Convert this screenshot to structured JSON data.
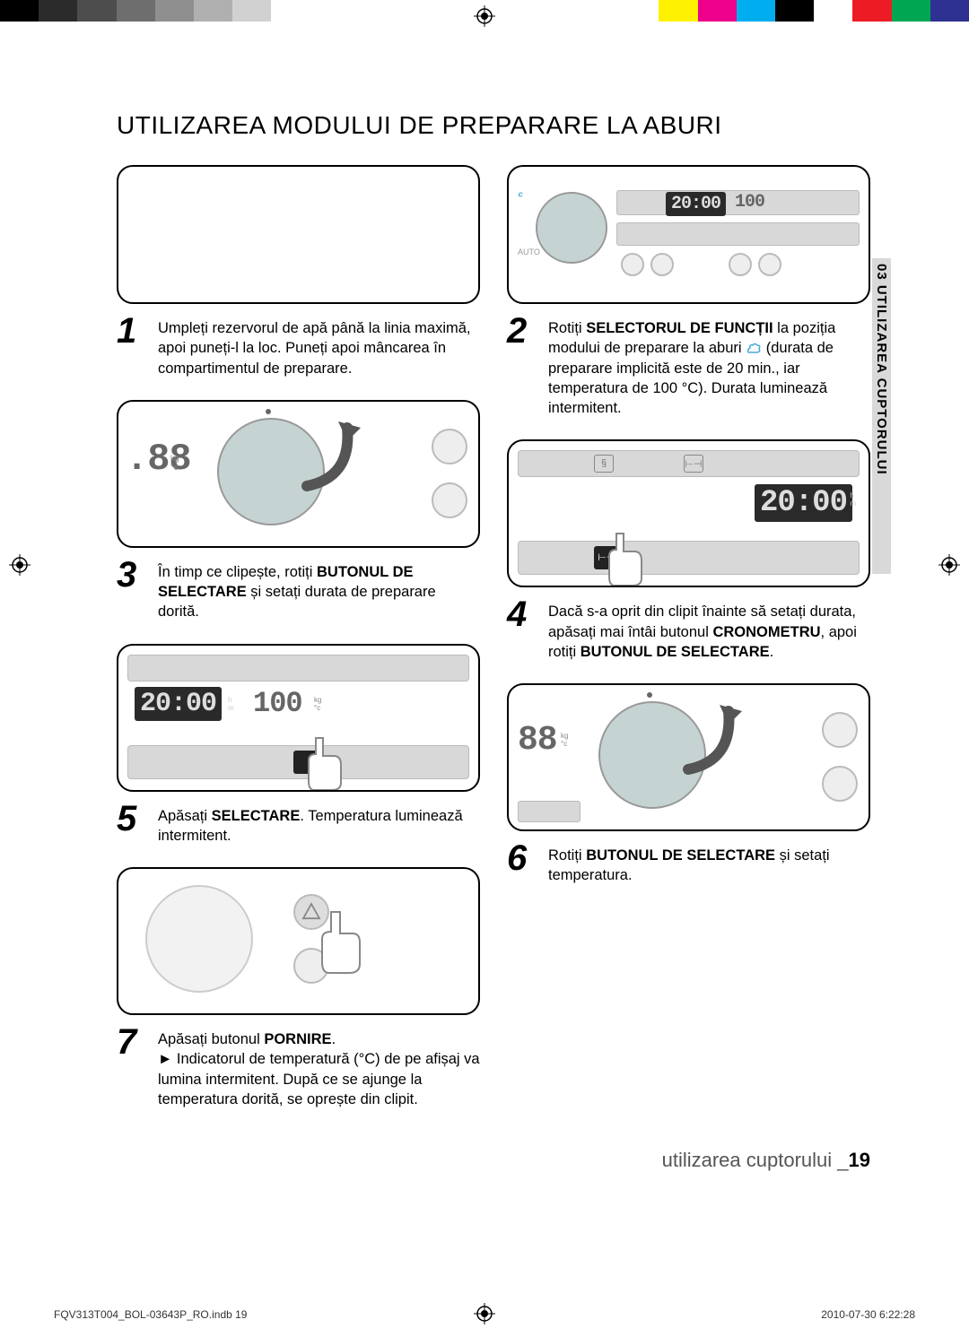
{
  "colorbar": [
    "#000000",
    "#2b2b2b",
    "#4d4d4d",
    "#6e6e6e",
    "#8f8f8f",
    "#b0b0b0",
    "#d1d1d1",
    "#ffffff",
    "#ffffff",
    "#ffffff",
    "#ffffff",
    "#ffffff",
    "#ffffff",
    "#ffffff",
    "#ffffff",
    "#ffffff",
    "#ffffff",
    "#fff200",
    "#ec008c",
    "#00aeef",
    "#000000",
    "#ffffff",
    "#ed1c24",
    "#00a651",
    "#2e3192"
  ],
  "title": "UTILIZAREA MODULUI DE PREPARARE LA ABURI",
  "side_tab": "03 UTILIZAREA CUPTORULUI",
  "steps": {
    "s1": {
      "num": "1",
      "text": "Umpleți rezervorul de apă până la linia maximă, apoi puneți-l la loc. Puneți apoi mâncarea în compartimentul de preparare."
    },
    "s2": {
      "num": "2",
      "pre": "Rotiți ",
      "bold1": "SELECTORUL DE FUNCȚII",
      "mid1": " la poziția modului de preparare la aburi ",
      "mid2": " (durata de preparare implicită este de 20 min., iar temperatura de 100 °C). Durata luminează intermitent."
    },
    "s3": {
      "num": "3",
      "pre": "În timp ce clipește, rotiți ",
      "bold1": "BUTONUL DE SELECTARE",
      "mid1": " și setați durata de preparare dorită."
    },
    "s4": {
      "num": "4",
      "pre": "Dacă s-a oprit din clipit înainte să setați durata, apăsați mai întâi butonul ",
      "bold1": "CRONOMETRU",
      "mid1": ", apoi rotiți ",
      "bold2": "BUTONUL DE SELECTARE",
      "post": "."
    },
    "s5": {
      "num": "5",
      "pre": "Apăsați ",
      "bold1": "SELECTARE",
      "mid1": ". Temperatura luminează intermitent."
    },
    "s6": {
      "num": "6",
      "pre": "Rotiți ",
      "bold1": "BUTONUL DE SELECTARE",
      "mid1": " și setați temperatura."
    },
    "s7": {
      "num": "7",
      "pre": "Apăsați butonul ",
      "bold1": "PORNIRE",
      "mid1": ".",
      "bullet": "► Indicatorul de temperatură (°C) de pe afișaj va lumina intermitent. După ce se ajunge la temperatura dorită, se oprește din clipit."
    }
  },
  "panel": {
    "time": "20:00",
    "temp": "100",
    "weight": "88",
    "d88": ".88"
  },
  "footer": {
    "section": "utilizarea cuptorului _",
    "page": "19"
  },
  "imprint": {
    "file": "FQV313T004_BOL-03643P_RO.indb   19",
    "date": "2010-07-30     6:22:28"
  }
}
